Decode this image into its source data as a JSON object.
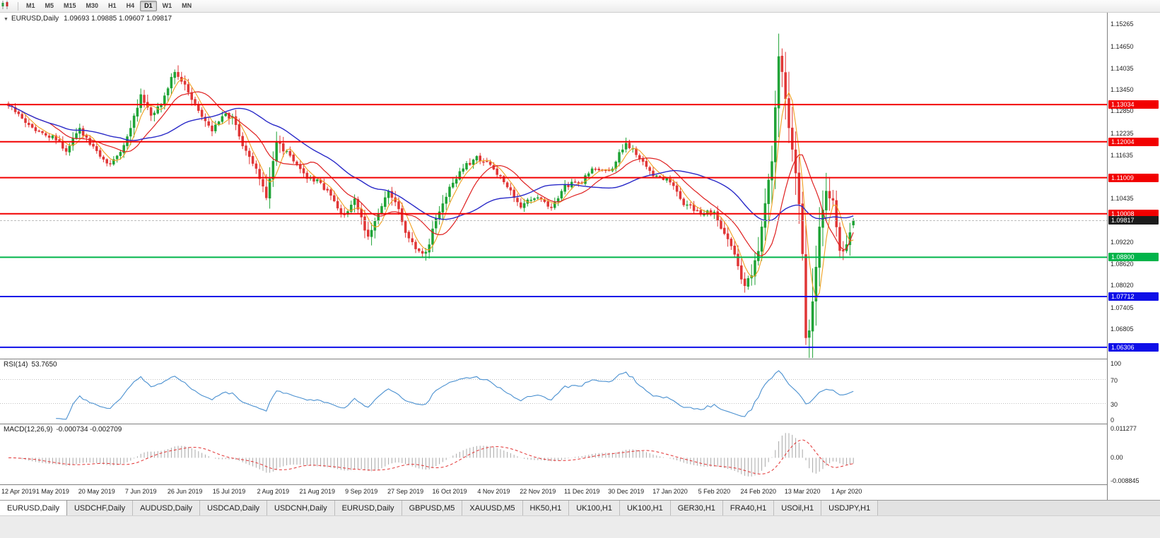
{
  "toolbar": {
    "timeframes": [
      "M1",
      "M5",
      "M15",
      "M30",
      "H1",
      "H4",
      "D1",
      "W1",
      "MN"
    ],
    "active_timeframe": "D1"
  },
  "chart": {
    "title": {
      "symbol_period": "EURUSD,Daily",
      "ohlc": "1.09693 1.09885 1.09607 1.09817"
    }
  },
  "indicators": {
    "rsi": {
      "label": "RSI(14)",
      "value": "53.7650"
    },
    "macd": {
      "label": "MACD(12,26,9)",
      "value": "-0.000734 -0.002709"
    }
  },
  "price_scale": {
    "ticks": [
      "1.15265",
      "1.14650",
      "1.14035",
      "1.13450",
      "1.12850",
      "1.12235",
      "1.11635",
      "1.10435",
      "1.09220",
      "1.08620",
      "1.08020",
      "1.07405",
      "1.06805"
    ],
    "rsi_levels": [
      "100",
      "70",
      "30",
      "0"
    ],
    "macd_levels": {
      "top": "0.011277",
      "zero": "0.00",
      "bottom": "-0.008845"
    }
  },
  "time_axis": {
    "labels": [
      "12 Apr 2019",
      "1 May 2019",
      "20 May 2019",
      "7 Jun 2019",
      "26 Jun 2019",
      "15 Jul 2019",
      "2 Aug 2019",
      "21 Aug 2019",
      "9 Sep 2019",
      "27 Sep 2019",
      "16 Oct 2019",
      "4 Nov 2019",
      "22 Nov 2019",
      "11 Dec 2019",
      "30 Dec 2019",
      "17 Jan 2020",
      "5 Feb 2020",
      "24 Feb 2020",
      "13 Mar 2020",
      "1 Apr 2020"
    ],
    "candles_per_label": 13
  },
  "tabs": [
    {
      "label": "EURUSD,Daily",
      "active": true
    },
    {
      "label": "USDCHF,Daily",
      "active": false
    },
    {
      "label": "AUDUSD,Daily",
      "active": false
    },
    {
      "label": "USDCAD,Daily",
      "active": false
    },
    {
      "label": "USDCNH,Daily",
      "active": false
    },
    {
      "label": "EURUSD,Daily",
      "active": false
    },
    {
      "label": "GBPUSD,M5",
      "active": false
    },
    {
      "label": "XAUUSD,M5",
      "active": false
    },
    {
      "label": "HK50,H1",
      "active": false
    },
    {
      "label": "UK100,H1",
      "active": false
    },
    {
      "label": "UK100,H1",
      "active": false
    },
    {
      "label": "GER30,H1",
      "active": false
    },
    {
      "label": "FRA40,H1",
      "active": false
    },
    {
      "label": "USOil,H1",
      "active": false
    },
    {
      "label": "USDJPY,H1",
      "active": false
    }
  ],
  "chart_data": {
    "type": "candlestick",
    "symbol": "EURUSD",
    "period": "Daily",
    "candles": 250,
    "note": "close_anchors are [candle_index, close] control points read off the chart; intermediate candles interpolated",
    "y_axis": {
      "min": 1.0601,
      "max": 1.1558
    },
    "last_ohlc": {
      "open": 1.09693,
      "high": 1.09885,
      "low": 1.09607,
      "close": 1.09817
    },
    "close_anchors": [
      [
        0,
        1.13
      ],
      [
        4,
        1.1268
      ],
      [
        8,
        1.1228
      ],
      [
        13,
        1.1215
      ],
      [
        17,
        1.1178
      ],
      [
        21,
        1.1232
      ],
      [
        26,
        1.117
      ],
      [
        30,
        1.1138
      ],
      [
        34,
        1.1185
      ],
      [
        39,
        1.1328
      ],
      [
        42,
        1.1272
      ],
      [
        45,
        1.1308
      ],
      [
        49,
        1.1395
      ],
      [
        52,
        1.136
      ],
      [
        56,
        1.1282
      ],
      [
        60,
        1.1228
      ],
      [
        63,
        1.1275
      ],
      [
        66,
        1.1268
      ],
      [
        69,
        1.1188
      ],
      [
        73,
        1.1132
      ],
      [
        76,
        1.1042
      ],
      [
        79,
        1.1198
      ],
      [
        83,
        1.1165
      ],
      [
        87,
        1.1108
      ],
      [
        91,
        1.1092
      ],
      [
        95,
        1.1048
      ],
      [
        99,
        1.0992
      ],
      [
        102,
        1.1035
      ],
      [
        106,
        1.0938
      ],
      [
        109,
        1.0998
      ],
      [
        112,
        1.1068
      ],
      [
        115,
        1.1012
      ],
      [
        117,
        1.0942
      ],
      [
        120,
        1.0908
      ],
      [
        123,
        1.0888
      ],
      [
        126,
        1.0988
      ],
      [
        130,
        1.1068
      ],
      [
        134,
        1.1128
      ],
      [
        138,
        1.1158
      ],
      [
        143,
        1.1128
      ],
      [
        147,
        1.1075
      ],
      [
        151,
        1.1022
      ],
      [
        156,
        1.1052
      ],
      [
        160,
        1.1012
      ],
      [
        164,
        1.1075
      ],
      [
        169,
        1.1092
      ],
      [
        173,
        1.1128
      ],
      [
        177,
        1.1115
      ],
      [
        182,
        1.1198
      ],
      [
        186,
        1.116
      ],
      [
        190,
        1.1112
      ],
      [
        195,
        1.1088
      ],
      [
        199,
        1.1032
      ],
      [
        203,
        1.1005
      ],
      [
        208,
        1.1
      ],
      [
        211,
        1.0948
      ],
      [
        214,
        1.0882
      ],
      [
        217,
        1.0798
      ],
      [
        219,
        1.0832
      ],
      [
        221,
        1.0898
      ],
      [
        223,
        1.1028
      ],
      [
        225,
        1.1152
      ],
      [
        227,
        1.1432
      ],
      [
        228,
        1.1388
      ],
      [
        230,
        1.1242
      ],
      [
        232,
        1.1108
      ],
      [
        233,
        1.1032
      ],
      [
        234,
        1.0888
      ],
      [
        235,
        1.0662
      ],
      [
        236,
        1.0682
      ],
      [
        237,
        1.0762
      ],
      [
        239,
        1.0958
      ],
      [
        241,
        1.1058
      ],
      [
        243,
        1.1032
      ],
      [
        245,
        1.0892
      ],
      [
        247,
        1.0912
      ],
      [
        249,
        1.09817
      ]
    ],
    "extremes": [
      {
        "i": 227,
        "high": 1.15
      },
      {
        "i": 235,
        "low": 1.0637
      }
    ],
    "horizontal_lines": [
      {
        "label": "1.13034",
        "value": 1.13034,
        "color": "#f20000",
        "width": 2
      },
      {
        "label": "1.12004",
        "value": 1.12004,
        "color": "#f20000",
        "width": 2
      },
      {
        "label": "1.11009",
        "value": 1.11009,
        "color": "#f20000",
        "width": 2
      },
      {
        "label": "1.10008",
        "value": 1.10008,
        "color": "#f20000",
        "width": 2
      },
      {
        "label": "1.09817",
        "value": 1.09817,
        "color": "#bdbdbd",
        "width": 1,
        "box": "#1c1c1c",
        "current": true,
        "dashed": true
      },
      {
        "label": "1.08800",
        "value": 1.088,
        "color": "#00b44a",
        "width": 2
      },
      {
        "label": "1.07712",
        "value": 1.07712,
        "color": "#0f0fe8",
        "width": 2
      },
      {
        "label": "1.06306",
        "value": 1.06306,
        "color": "#0f0fe8",
        "width": 2
      }
    ],
    "moving_averages": [
      {
        "period": 5,
        "color": "#f0a020",
        "width": 1.1
      },
      {
        "period": 13,
        "color": "#df2020",
        "width": 1.2
      },
      {
        "period": 34,
        "color": "#2a2ac8",
        "width": 1.4
      }
    ],
    "rsi": {
      "period": 14,
      "color": "#4a90d0",
      "levels": [
        70,
        30
      ]
    },
    "macd": {
      "fast": 12,
      "slow": 26,
      "signal": 9,
      "scale_max": 0.011277,
      "scale_min": -0.008845,
      "histogram_color": "#a8a8a8",
      "signal_color": "#e23030"
    },
    "colors": {
      "bull": "#1fa336",
      "bear": "#e03636"
    }
  }
}
